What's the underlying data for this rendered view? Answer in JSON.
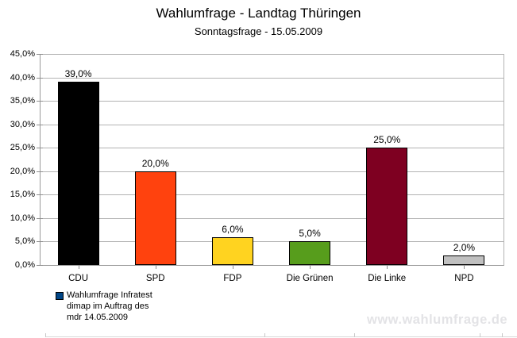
{
  "header": {
    "title": "Wahlumfrage - Landtag Thüringen",
    "subtitle": "Sonntagsfrage - 15.05.2009"
  },
  "chart_data": {
    "type": "bar",
    "title": "Wahlumfrage - Landtag Thüringen",
    "subtitle": "Sonntagsfrage - 15.05.2009",
    "categories": [
      "CDU",
      "SPD",
      "FDP",
      "Die Grünen",
      "Die Linke",
      "NPD"
    ],
    "values": [
      39.0,
      20.0,
      6.0,
      5.0,
      25.0,
      2.0
    ],
    "value_labels": [
      "39,0%",
      "20,0%",
      "6,0%",
      "5,0%",
      "25,0%",
      "2,0%"
    ],
    "bar_colors": [
      "#000000",
      "#FF420E",
      "#FFD320",
      "#579D1C",
      "#7E0021",
      "#C0C0C0"
    ],
    "xlabel": "",
    "ylabel": "",
    "ylim": [
      0,
      45
    ],
    "y_tick_step": 5,
    "y_tick_labels": [
      "0,0%",
      "5,0%",
      "10,0%",
      "15,0%",
      "20,0%",
      "25,0%",
      "30,0%",
      "35,0%",
      "40,0%",
      "45,0%"
    ],
    "grid": true,
    "gridline_color": "#b3b3b3",
    "legend_position": "bottom-left"
  },
  "legend": {
    "marker_color": "#004586",
    "lines": [
      "Wahlumfrage Infratest",
      "dimap im Auftrag des",
      "mdr 14.05.2009"
    ]
  },
  "watermark": {
    "text": "www.wahlumfrage.de"
  }
}
